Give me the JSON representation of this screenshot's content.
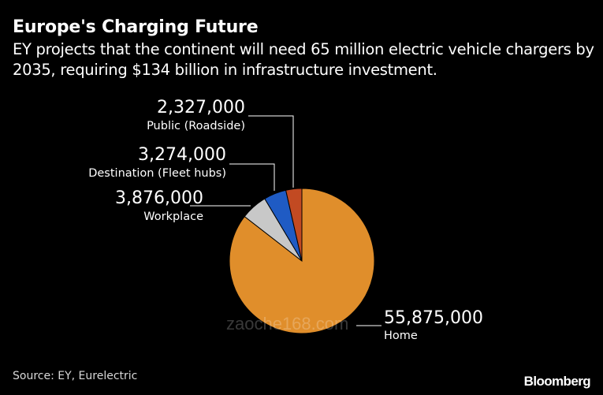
{
  "title": "Europe's Charging Future",
  "subtitle": "EY projects that the continent will need 65 million electric vehicle chargers by 2035, requiring $134 billion in infrastructure investment.",
  "source": "Source: EY, Eurelectric",
  "brand": "Bloomberg",
  "watermark": "zaoche168.com",
  "colors": {
    "background": "#000000",
    "home": "#E08E2B",
    "workplace": "#C8C8C8",
    "destination": "#1F5BC4",
    "public": "#C24A22",
    "leader": "#FFFFFF"
  },
  "chart_data": {
    "type": "pie",
    "title": "Europe's Charging Future",
    "slices": [
      {
        "label": "Home",
        "value": 55875000,
        "display": "55,875,000",
        "color": "#E08E2B"
      },
      {
        "label": "Workplace",
        "value": 3876000,
        "display": "3,876,000",
        "color": "#C8C8C8"
      },
      {
        "label": "Destination (Fleet hubs)",
        "value": 3274000,
        "display": "3,274,000",
        "color": "#1F5BC4"
      },
      {
        "label": "Public (Roadside)",
        "value": 2327000,
        "display": "2,327,000",
        "color": "#C24A22"
      }
    ],
    "start": "top",
    "direction": "clockwise"
  }
}
